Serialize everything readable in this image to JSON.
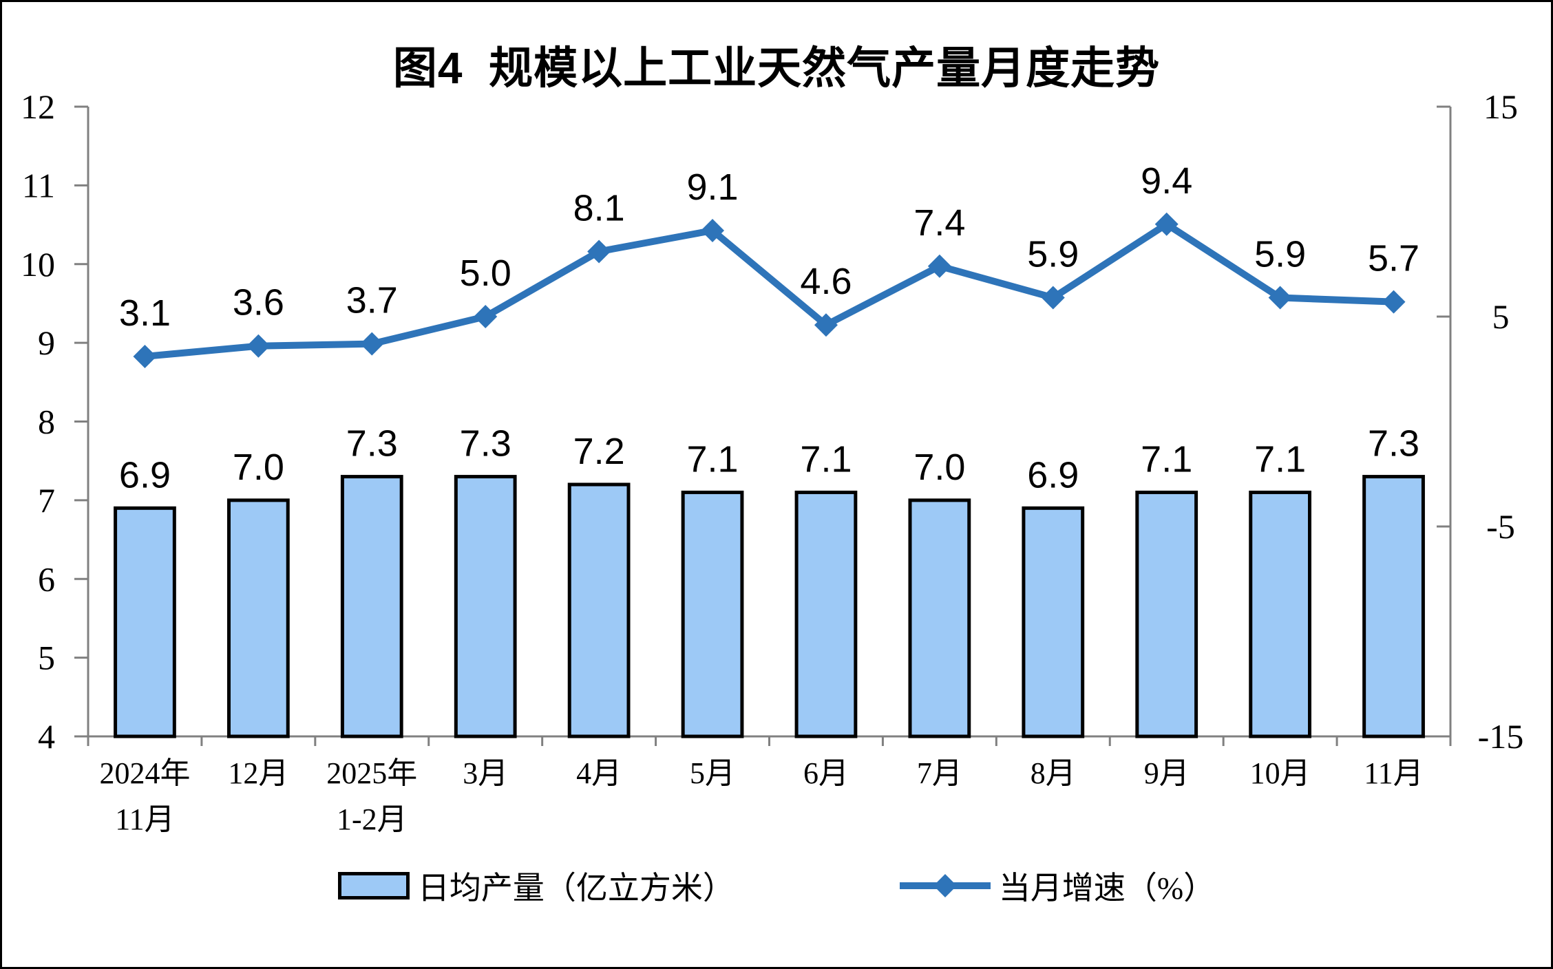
{
  "chart_data": {
    "type": "combo (bar + line)",
    "title": "图4  规模以上工业天然气产量月度走势",
    "categories": [
      "2024年\n11月",
      "12月",
      "2025年\n1-2月",
      "3月",
      "4月",
      "5月",
      "6月",
      "7月",
      "8月",
      "9月",
      "10月",
      "11月"
    ],
    "series": [
      {
        "name": "日均产量（亿立方米）",
        "type": "bar",
        "axis": "left",
        "values": [
          6.9,
          7.0,
          7.3,
          7.3,
          7.2,
          7.1,
          7.1,
          7.0,
          6.9,
          7.1,
          7.1,
          7.3
        ],
        "fill": "#9DC9F6",
        "border": "#000000"
      },
      {
        "name": "当月增速（%）",
        "type": "line",
        "axis": "right",
        "marker": "diamond",
        "values": [
          3.1,
          3.6,
          3.7,
          5.0,
          8.1,
          9.1,
          4.6,
          7.4,
          5.9,
          9.4,
          5.9,
          5.7
        ],
        "color": "#2E74B9"
      }
    ],
    "left_axis": {
      "min": 4,
      "max": 12,
      "ticks": [
        4,
        5,
        6,
        7,
        8,
        9,
        10,
        11,
        12
      ]
    },
    "right_axis": {
      "min": -15,
      "max": 15,
      "ticks": [
        -15,
        -5,
        5,
        15
      ]
    },
    "value_label_decimals": 1,
    "grid": false,
    "legend_position": "bottom",
    "axis_color": "#808080",
    "text_color": "#000000"
  }
}
